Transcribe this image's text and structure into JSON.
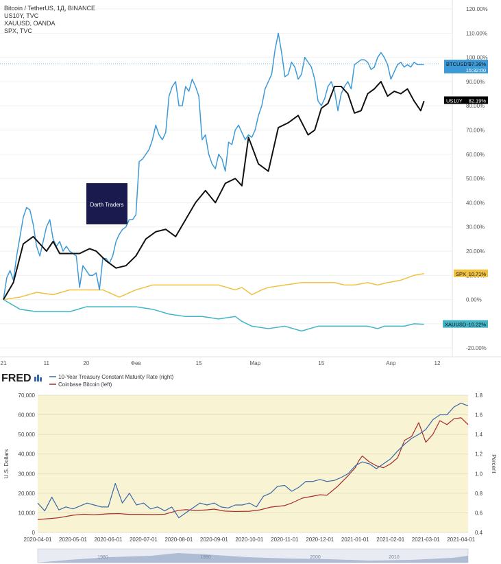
{
  "chart_data": [
    {
      "type": "line",
      "legend": [
        "Bitcoin / TetherUS, 1Д, BINANCE",
        "US10Y, TVC",
        "XAUUSD, OANDA",
        "SPX, TVC"
      ],
      "x_ticks": [
        {
          "label": "21",
          "x": 0
        },
        {
          "label": "11",
          "x": 13
        },
        {
          "label": "20",
          "x": 25
        },
        {
          "label": "Фев",
          "x": 40
        },
        {
          "label": "15",
          "x": 59
        },
        {
          "label": "Мар",
          "x": 76
        },
        {
          "label": "15",
          "x": 96
        },
        {
          "label": "Апр",
          "x": 117
        },
        {
          "label": "12",
          "x": 131
        }
      ],
      "y_ticks": [
        "120.00%",
        "110.00%",
        "100.00%",
        "90.00%",
        "80.00%",
        "70.00%",
        "60.00%",
        "50.00%",
        "40.00%",
        "30.00%",
        "20.00%",
        "10.00%",
        "0.00%",
        "-10.00%",
        "-20.00%"
      ],
      "y_tick_values": [
        120,
        110,
        100,
        90,
        80,
        70,
        60,
        50,
        40,
        30,
        20,
        10,
        0,
        -10,
        -20
      ],
      "ylim": [
        -22.5,
        122
      ],
      "xlim": [
        0,
        131
      ],
      "annotation": "Darth Traders",
      "series": [
        {
          "name": "BTCUSDT",
          "color": "#3d9ad7",
          "badge": "97.36%",
          "badge_extra": "15:32:00",
          "x": [
            0,
            1,
            2,
            3,
            4,
            5,
            6,
            7,
            8,
            9,
            10,
            11,
            12,
            13,
            14,
            15,
            16,
            17,
            18,
            19,
            20,
            21,
            22,
            23,
            24,
            25,
            26,
            27,
            28,
            29,
            30,
            31,
            32,
            33,
            34,
            35,
            36,
            37,
            38,
            39,
            40,
            41,
            42,
            43,
            44,
            45,
            46,
            47,
            48,
            49,
            50,
            51,
            52,
            53,
            54,
            55,
            56,
            57,
            58,
            59,
            60,
            61,
            62,
            63,
            64,
            65,
            66,
            67,
            68,
            69,
            70,
            71,
            72,
            73,
            74,
            75,
            76,
            77,
            78,
            79,
            80,
            81,
            82,
            83,
            84,
            85,
            86,
            87,
            88,
            89,
            90,
            91,
            92,
            93,
            94,
            95,
            96,
            97,
            98,
            99,
            100,
            101,
            102,
            103,
            104,
            105,
            106,
            107,
            108,
            109,
            110,
            111,
            112,
            113,
            114,
            115,
            116,
            117,
            118,
            119,
            120,
            121,
            122,
            123,
            124,
            125,
            126,
            127
          ],
          "values": [
            0,
            9,
            12,
            8,
            18,
            26,
            34,
            38,
            37,
            31,
            22,
            18,
            24,
            30,
            33,
            25,
            22,
            24,
            20,
            22,
            20,
            19,
            18,
            5,
            14,
            12,
            10,
            10,
            11,
            4,
            17,
            17,
            15,
            18,
            24,
            27,
            29,
            30,
            33,
            33,
            35,
            57,
            58,
            60,
            62,
            66,
            72,
            68,
            66,
            69,
            84,
            88,
            90,
            80,
            80,
            88,
            86,
            91,
            88,
            84,
            66,
            68,
            60,
            56,
            54,
            60,
            58,
            53,
            65,
            64,
            70,
            72,
            69,
            66,
            68,
            67,
            70,
            76,
            80,
            87,
            90,
            93,
            103,
            110,
            102,
            92,
            93,
            98,
            96,
            91,
            93,
            100,
            98,
            96,
            91,
            82,
            80,
            83,
            88,
            90,
            86,
            78,
            85,
            88,
            90,
            87,
            97,
            98,
            99,
            99,
            98,
            95,
            96,
            100,
            102,
            100,
            97,
            91,
            94,
            97,
            98,
            96,
            97,
            96,
            98,
            97,
            97,
            97
          ],
          "note": "approximate daily series"
        },
        {
          "name": "US10Y",
          "color": "#111111",
          "badge": "82.19%",
          "x": [
            0,
            3,
            6,
            9,
            13,
            15,
            17,
            20,
            23,
            26,
            28,
            31,
            34,
            37,
            40,
            43,
            46,
            49,
            52,
            55,
            58,
            61,
            64,
            67,
            70,
            72,
            74,
            77,
            80,
            83,
            86,
            89,
            92,
            94,
            96,
            98,
            100,
            102,
            104,
            106,
            108,
            110,
            112,
            114,
            116,
            118,
            120,
            122,
            124,
            126,
            127
          ],
          "values": [
            0,
            7,
            23,
            26,
            20,
            24,
            19,
            19,
            19,
            21,
            20,
            16,
            13,
            14,
            18,
            25,
            28,
            29,
            26,
            33,
            40,
            45,
            40,
            48,
            50,
            47,
            67,
            56,
            53,
            71,
            73,
            76,
            68,
            70,
            79,
            81,
            88,
            88,
            85,
            77,
            78,
            85,
            87,
            90,
            84,
            86,
            85,
            87,
            82,
            78,
            82
          ]
        },
        {
          "name": "SPX",
          "color": "#f0c040",
          "badge": "10.71%",
          "x": [
            0,
            5,
            10,
            15,
            20,
            25,
            30,
            35,
            40,
            45,
            50,
            55,
            60,
            65,
            70,
            72,
            75,
            78,
            80,
            85,
            90,
            95,
            100,
            103,
            106,
            110,
            113,
            116,
            120,
            124,
            127
          ],
          "values": [
            0,
            1,
            3,
            2,
            4,
            4,
            4,
            1,
            4,
            6,
            6,
            6,
            6,
            6,
            4,
            5,
            2,
            4,
            5,
            6,
            7,
            7,
            7,
            6,
            6,
            7,
            6,
            7,
            8,
            10,
            10.71
          ]
        },
        {
          "name": "XAUUSD",
          "color": "#42b4c8",
          "badge": "-10.22%",
          "x": [
            0,
            5,
            10,
            15,
            20,
            25,
            30,
            35,
            40,
            45,
            50,
            55,
            60,
            65,
            70,
            72,
            75,
            80,
            85,
            90,
            95,
            100,
            105,
            110,
            113,
            115,
            118,
            121,
            124,
            127
          ],
          "values": [
            0,
            -4,
            -5,
            -5,
            -5,
            -3,
            -3,
            -3,
            -3,
            -4,
            -6,
            -7,
            -7,
            -8,
            -7,
            -9,
            -11,
            -12,
            -11,
            -13,
            -11,
            -11,
            -11,
            -11,
            -12,
            -11,
            -11,
            -11,
            -10,
            -10.22
          ]
        }
      ]
    },
    {
      "type": "line",
      "source": "FRED",
      "legend": [
        "10-Year Treasury Constant Maturity Rate (right)",
        "Coinbase Bitcoin (left)"
      ],
      "ylabel_left": "U.S. Dollars",
      "ylabel_right": "Percent",
      "ylim_left": [
        0,
        70000
      ],
      "ylim_right": [
        0.4,
        1.8
      ],
      "y_ticks_left": [
        "0",
        "10,000",
        "20,000",
        "30,000",
        "40,000",
        "50,000",
        "60,000",
        "70,000"
      ],
      "y_ticks_left_values": [
        0,
        10000,
        20000,
        30000,
        40000,
        50000,
        60000,
        70000
      ],
      "y_ticks_right": [
        "0.4",
        "0.6",
        "0.8",
        "1.0",
        "1.2",
        "1.4",
        "1.6",
        "1.8"
      ],
      "y_ticks_right_values": [
        0.4,
        0.6,
        0.8,
        1.0,
        1.2,
        1.4,
        1.6,
        1.8
      ],
      "x_ticks": [
        "2020-04-01",
        "2020-05-01",
        "2020-06-01",
        "2020-07-01",
        "2020-08-01",
        "2020-09-01",
        "2020-10-01",
        "2020-11-01",
        "2020-12-01",
        "2021-01-01",
        "2021-02-01",
        "2021-03-01",
        "2021-04-01"
      ],
      "x_months": [
        0,
        1,
        2,
        3,
        4,
        5,
        6,
        7,
        8,
        9,
        10,
        11,
        12
      ],
      "xlim_months": [
        0,
        12.2
      ],
      "navigator_labels": [
        "1980",
        "1990",
        "2000",
        "2010"
      ],
      "series": [
        {
          "name": "Coinbase Bitcoin (left)",
          "color": "#a52a2a",
          "axis": "left",
          "x": [
            0,
            0.3,
            0.6,
            1,
            1.3,
            1.6,
            2,
            2.3,
            2.6,
            3,
            3.3,
            3.6,
            4,
            4.2,
            4.5,
            4.8,
            5,
            5.3,
            5.6,
            6,
            6.3,
            6.6,
            7,
            7.2,
            7.5,
            7.8,
            8,
            8.2,
            8.5,
            8.8,
            9,
            9.1,
            9.2,
            9.4,
            9.6,
            9.8,
            10,
            10.2,
            10.4,
            10.6,
            10.8,
            11,
            11.2,
            11.4,
            11.6,
            11.8,
            12,
            12.2
          ],
          "values": [
            6600,
            7000,
            7500,
            8800,
            9300,
            9000,
            9500,
            9600,
            9200,
            9200,
            9100,
            9300,
            11300,
            11600,
            11200,
            11500,
            11900,
            10900,
            10700,
            10800,
            11500,
            12900,
            13700,
            15000,
            17500,
            18500,
            19200,
            19000,
            23500,
            29000,
            33000,
            36500,
            39000,
            36000,
            34000,
            33000,
            35000,
            38000,
            47000,
            49000,
            56000,
            46000,
            50000,
            57000,
            55000,
            58000,
            58500,
            55000
          ]
        },
        {
          "name": "10-Year Treasury Constant Maturity Rate (right)",
          "color": "#3a67a8",
          "axis": "right",
          "x": [
            0,
            0.2,
            0.4,
            0.6,
            0.8,
            1,
            1.2,
            1.4,
            1.6,
            1.8,
            2,
            2.2,
            2.4,
            2.6,
            2.8,
            3,
            3.2,
            3.4,
            3.6,
            3.8,
            4,
            4.2,
            4.4,
            4.6,
            4.8,
            5,
            5.2,
            5.4,
            5.6,
            5.8,
            6,
            6.2,
            6.4,
            6.6,
            6.8,
            7,
            7.2,
            7.4,
            7.6,
            7.8,
            8,
            8.2,
            8.4,
            8.6,
            8.8,
            9,
            9.2,
            9.4,
            9.6,
            9.8,
            10,
            10.2,
            10.4,
            10.6,
            10.8,
            11,
            11.2,
            11.4,
            11.6,
            11.8,
            12,
            12.2
          ],
          "values": [
            0.7,
            0.62,
            0.76,
            0.63,
            0.66,
            0.64,
            0.67,
            0.7,
            0.68,
            0.66,
            0.66,
            0.9,
            0.7,
            0.8,
            0.68,
            0.7,
            0.64,
            0.66,
            0.62,
            0.66,
            0.55,
            0.6,
            0.65,
            0.7,
            0.68,
            0.7,
            0.66,
            0.65,
            0.68,
            0.68,
            0.7,
            0.66,
            0.77,
            0.8,
            0.87,
            0.88,
            0.82,
            0.86,
            0.92,
            0.92,
            0.94,
            0.92,
            0.93,
            0.96,
            1.0,
            1.08,
            1.12,
            1.1,
            1.05,
            1.1,
            1.15,
            1.23,
            1.3,
            1.36,
            1.4,
            1.45,
            1.55,
            1.6,
            1.6,
            1.68,
            1.72,
            1.69
          ]
        }
      ]
    }
  ]
}
